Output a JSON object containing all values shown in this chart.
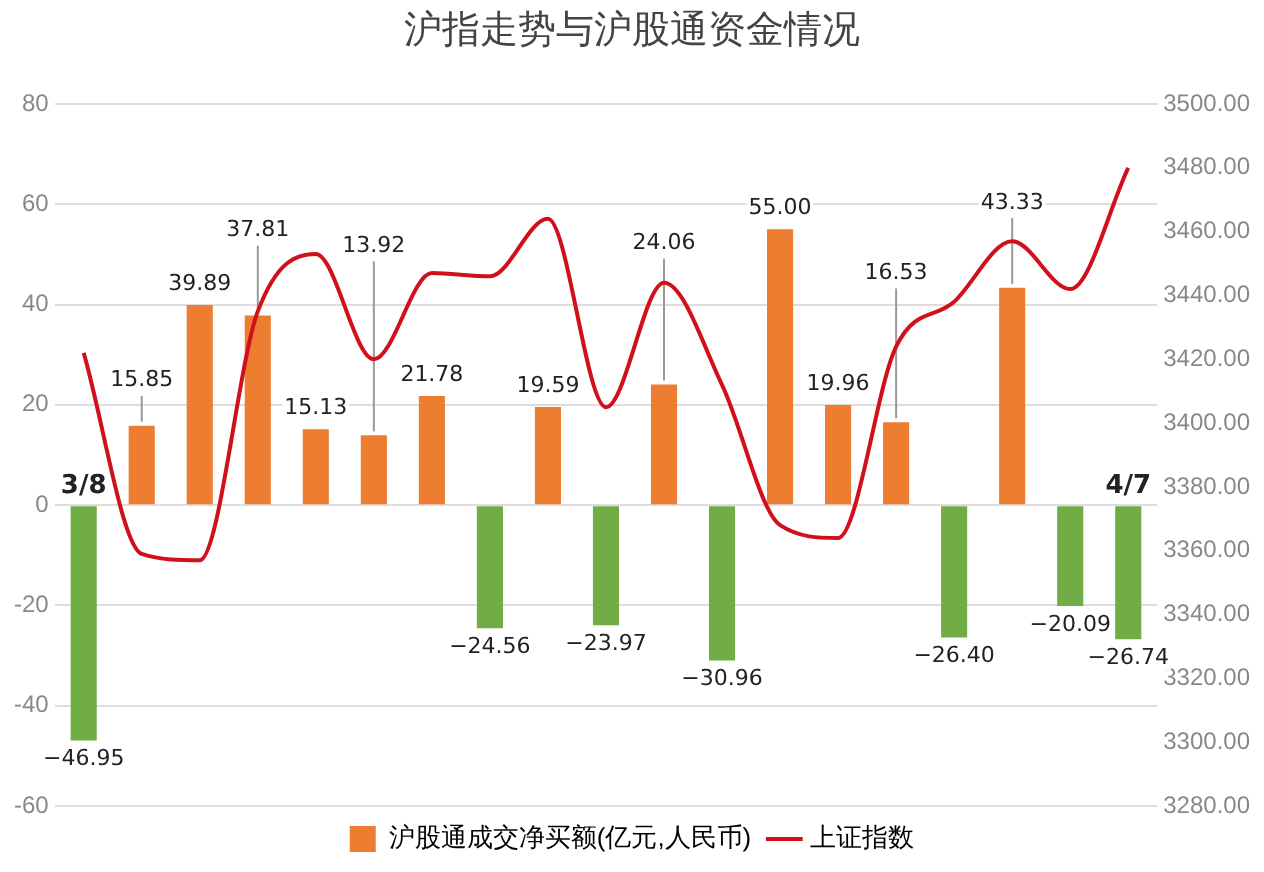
{
  "chart_data": {
    "type": "bar",
    "title": "沪指走势与沪股通资金情况",
    "categories": [
      "3/8",
      null,
      null,
      null,
      null,
      null,
      null,
      null,
      null,
      null,
      null,
      null,
      null,
      null,
      null,
      null,
      null,
      null,
      "4/7"
    ],
    "series": [
      {
        "name": "沪股通成交净买额(亿元,人民币)",
        "color": "#ed7d31",
        "colors": [
          "#70ad47",
          "#ed7d31",
          "#ed7d31",
          "#ed7d31",
          "#ed7d31",
          "#ed7d31",
          "#ed7d31",
          "#70ad47",
          "#ed7d31",
          "#70ad47",
          "#ed7d31",
          "#70ad47",
          "#ed7d31",
          "#ed7d31",
          "#ed7d31",
          "#70ad47",
          "#ed7d31",
          "#70ad47",
          "#70ad47"
        ],
        "values": [
          -46.95,
          15.85,
          39.89,
          37.81,
          15.13,
          13.92,
          21.78,
          -24.56,
          19.59,
          -23.97,
          24.06,
          -30.96,
          55.0,
          19.96,
          16.53,
          -26.4,
          43.33,
          -20.09,
          -26.74
        ],
        "value_labels": [
          "−46.95",
          "15.85",
          "39.89",
          "37.81",
          "15.13",
          "13.92",
          "21.78",
          "−24.56",
          "19.59",
          "−23.97",
          "24.06",
          "−30.96",
          "55.00",
          "19.96",
          "16.53",
          "−26.40",
          "43.33",
          "−20.09",
          "−26.74"
        ]
      },
      {
        "type": "line",
        "name": "上证指数",
        "color": "#d0101b",
        "axis": "y2",
        "values": [
          3422,
          3359,
          3357,
          3435,
          3453,
          3420,
          3447,
          3446,
          3464,
          3405,
          3444,
          3412,
          3368,
          3364,
          3424,
          3438,
          3457,
          3442,
          3480
        ]
      }
    ],
    "ylim": [
      -60,
      80
    ],
    "yticks": [
      -60,
      -40,
      -20,
      0,
      20,
      40,
      60,
      80
    ],
    "y2lim": [
      3280,
      3500
    ],
    "y2ticks": [
      {
        "value": 3280,
        "label": "3280.00"
      },
      {
        "value": 3300,
        "label": "3300.00"
      },
      {
        "value": 3320,
        "label": "3320.00"
      },
      {
        "value": 3340,
        "label": "3340.00"
      },
      {
        "value": 3360,
        "label": "3360.00"
      },
      {
        "value": 3380,
        "label": "3380.00"
      },
      {
        "value": 3400,
        "label": "3400.00"
      },
      {
        "value": 3420,
        "label": "3420.00"
      },
      {
        "value": 3440,
        "label": "3440.00"
      },
      {
        "value": 3460,
        "label": "3460.00"
      },
      {
        "value": 3480,
        "label": "3480.00"
      },
      {
        "value": 3500,
        "label": "3500.00"
      }
    ],
    "grid": "y",
    "legend": "bottom",
    "marker": "none",
    "line_style": "solid"
  }
}
